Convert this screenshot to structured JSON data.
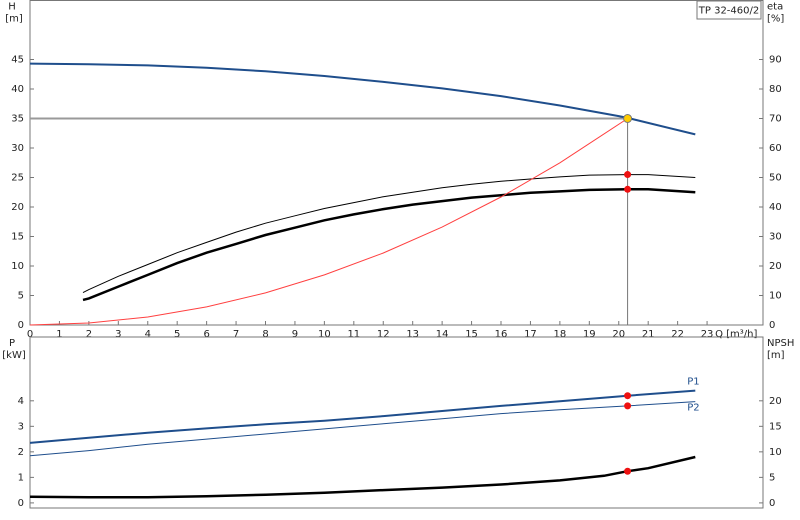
{
  "chart_data": [
    {
      "type": "line",
      "y_label": "H",
      "y_unit": "[m]",
      "y2_label": "eta",
      "y2_unit": "[%]",
      "x_label": "Q [m³/h]",
      "annotation": "TP 32-460/2",
      "xlim": [
        0,
        24.9
      ],
      "xticks": [
        0,
        1,
        2,
        3,
        4,
        5,
        6,
        7,
        8,
        9,
        10,
        11,
        12,
        13,
        14,
        15,
        16,
        17,
        18,
        19,
        20,
        21,
        22,
        23
      ],
      "ylim": [
        0,
        55
      ],
      "yticks": [
        0,
        5,
        10,
        15,
        20,
        25,
        30,
        35,
        40,
        45
      ],
      "y2lim": [
        0,
        110
      ],
      "y2ticks": [
        0,
        10,
        20,
        30,
        40,
        50,
        60,
        70,
        80,
        90
      ],
      "series": [
        {
          "color": "#1f4e8c",
          "linewidth": 2,
          "x": [
            0,
            2,
            4,
            6,
            8,
            10,
            12,
            14,
            16,
            18,
            20,
            20.3,
            22.6
          ],
          "values": [
            44.3,
            44.2,
            44.0,
            43.6,
            43.0,
            42.2,
            41.2,
            40.1,
            38.8,
            37.2,
            35.4,
            35.1,
            32.3
          ]
        },
        {
          "color": "#000000",
          "linewidth": 1,
          "axis": "y2",
          "x": [
            1.8,
            2,
            3,
            4,
            5,
            6,
            7,
            8,
            9,
            10,
            11,
            12,
            13,
            14,
            15,
            16,
            17,
            18,
            19,
            20.3,
            21,
            22.6
          ],
          "values": [
            11,
            12,
            16.5,
            20.5,
            24.5,
            28,
            31.5,
            34.5,
            37,
            39.5,
            41.5,
            43.5,
            45,
            46.5,
            47.7,
            48.7,
            49.5,
            50.2,
            50.8,
            51,
            51,
            50
          ]
        },
        {
          "color": "#000000",
          "linewidth": 2.5,
          "axis": "y2",
          "x": [
            1.8,
            2,
            3,
            4,
            5,
            6,
            7,
            8,
            9,
            10,
            11,
            12,
            13,
            14,
            15,
            16,
            17,
            18,
            19,
            20.3,
            21,
            22.6
          ],
          "values": [
            8.5,
            9,
            13,
            17,
            21,
            24.5,
            27.5,
            30.5,
            33,
            35.5,
            37.5,
            39.3,
            40.8,
            42,
            43.2,
            44,
            44.8,
            45.3,
            45.8,
            46,
            46,
            45
          ]
        },
        {
          "color": "#ff4040",
          "linewidth": 1,
          "x": [
            0,
            2,
            4,
            6,
            8,
            10,
            12,
            14,
            16,
            18,
            20.3
          ],
          "values": [
            0,
            0.34,
            1.36,
            3.06,
            5.44,
            8.5,
            12.2,
            16.6,
            21.7,
            27.5,
            35
          ]
        }
      ],
      "duty_point": {
        "x": 20.3,
        "y": 35,
        "color": "#ffcc00"
      },
      "markers": [
        {
          "x": 20.3,
          "y": 51,
          "axis": "y2",
          "color": "#ee1111"
        },
        {
          "x": 20.3,
          "y": 46,
          "axis": "y2",
          "color": "#ee1111"
        }
      ]
    },
    {
      "type": "line",
      "y_label": "P",
      "y_unit": "[kW]",
      "y2_label": "NPSH",
      "y2_unit": "[m]",
      "xlim": [
        0,
        24.9
      ],
      "ylim": [
        -0.2,
        6.5
      ],
      "yticks": [
        0,
        1,
        2,
        3,
        4
      ],
      "y2lim": [
        -1,
        32.5
      ],
      "y2ticks": [
        0,
        5,
        10,
        15,
        20
      ],
      "series": [
        {
          "name": "P1",
          "color": "#1f4e8c",
          "linewidth": 2,
          "x": [
            0,
            2,
            4,
            6,
            8,
            10,
            12,
            14,
            16,
            18,
            20.3,
            22.6
          ],
          "values": [
            2.35,
            2.55,
            2.75,
            2.92,
            3.08,
            3.22,
            3.4,
            3.6,
            3.8,
            3.98,
            4.2,
            4.4
          ]
        },
        {
          "name": "P2",
          "color": "#1f4e8c",
          "linewidth": 1,
          "x": [
            0,
            2,
            4,
            6,
            8,
            10,
            12,
            14,
            16,
            18,
            20.3,
            22.6
          ],
          "values": [
            1.85,
            2.05,
            2.3,
            2.5,
            2.7,
            2.9,
            3.1,
            3.3,
            3.5,
            3.65,
            3.8,
            3.97
          ]
        },
        {
          "color": "#000000",
          "linewidth": 2.5,
          "axis": "y2",
          "x": [
            0,
            2,
            4,
            6,
            8,
            10,
            12,
            14,
            16,
            18,
            19.5,
            20.3,
            21,
            22.6
          ],
          "values": [
            1.2,
            1.1,
            1.1,
            1.3,
            1.6,
            2.0,
            2.5,
            3.0,
            3.6,
            4.4,
            5.3,
            6.2,
            6.8,
            9.0
          ]
        }
      ],
      "markers": [
        {
          "x": 20.3,
          "y": 4.2,
          "color": "#ee1111"
        },
        {
          "x": 20.3,
          "y": 3.8,
          "color": "#ee1111"
        },
        {
          "x": 20.3,
          "y": 6.2,
          "axis": "y2",
          "color": "#ee1111"
        }
      ]
    }
  ]
}
